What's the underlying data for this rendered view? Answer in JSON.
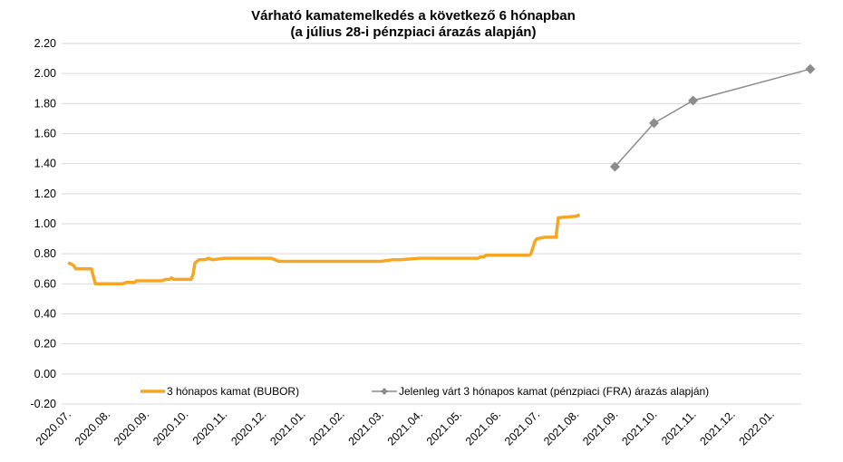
{
  "chart_data": {
    "type": "line",
    "title": "Várható kamatemelkedés a következő 6 hónapban",
    "subtitle": "(a július 28-i pénzpiaci árazás alapján)",
    "xlabel": "",
    "ylabel": "",
    "ylim": [
      -0.2,
      2.2
    ],
    "yticks": [
      "2.20",
      "2.00",
      "1.80",
      "1.60",
      "1.40",
      "1.20",
      "1.00",
      "0.80",
      "0.60",
      "0.40",
      "0.20",
      "0.00",
      "-0.20"
    ],
    "ytick_values": [
      2.2,
      2.0,
      1.8,
      1.6,
      1.4,
      1.2,
      1.0,
      0.8,
      0.6,
      0.4,
      0.2,
      0.0,
      -0.2
    ],
    "categories": [
      "2020.07.",
      "2020.08.",
      "2020.09.",
      "2020.10.",
      "2020.11.",
      "2020.12.",
      "2021.01.",
      "2021.02.",
      "2021.03.",
      "2021.04.",
      "2021.05.",
      "2021.06.",
      "2021.07.",
      "2021.08.",
      "2021.09.",
      "2021.10.",
      "2021.11.",
      "2021.12.",
      "2022.01."
    ],
    "grid": true,
    "legend_position": "bottom",
    "series": [
      {
        "name": "3 hónapos kamat (BUBOR)",
        "color": "#F5A623",
        "style": "line",
        "x": [
          0.0,
          0.1,
          0.15,
          0.2,
          0.3,
          0.4,
          0.6,
          0.62,
          0.65,
          0.68,
          0.7,
          0.75,
          0.8,
          0.9,
          0.95,
          1.0,
          1.2,
          1.4,
          1.5,
          1.6,
          1.7,
          1.75,
          1.8,
          1.85,
          1.9,
          1.95,
          2.0,
          2.05,
          2.2,
          2.4,
          2.5,
          2.6,
          2.65,
          2.7,
          2.8,
          3.0,
          3.15,
          3.2,
          3.25,
          3.3,
          3.35,
          3.5,
          3.6,
          3.7,
          4.0,
          5.0,
          5.2,
          5.3,
          5.4,
          6.0,
          6.5,
          7.0,
          7.2,
          7.3,
          7.5,
          8.0,
          8.3,
          8.5,
          9.0,
          9.2,
          9.4,
          9.5,
          10.0,
          10.5,
          10.55,
          10.6,
          10.65,
          10.7,
          10.75,
          10.8,
          10.85,
          10.9,
          11.0,
          11.2,
          11.4,
          11.6,
          11.8,
          11.85,
          11.9,
          11.95,
          12.0,
          12.2,
          12.3,
          12.45,
          12.5
        ],
        "values": [
          0.74,
          0.73,
          0.72,
          0.7,
          0.7,
          0.7,
          0.7,
          0.68,
          0.65,
          0.62,
          0.6,
          0.6,
          0.6,
          0.6,
          0.6,
          0.6,
          0.6,
          0.6,
          0.61,
          0.61,
          0.61,
          0.62,
          0.62,
          0.62,
          0.62,
          0.62,
          0.62,
          0.62,
          0.62,
          0.62,
          0.63,
          0.63,
          0.64,
          0.63,
          0.63,
          0.63,
          0.63,
          0.66,
          0.74,
          0.75,
          0.76,
          0.76,
          0.77,
          0.76,
          0.77,
          0.77,
          0.77,
          0.76,
          0.75,
          0.75,
          0.75,
          0.75,
          0.75,
          0.75,
          0.75,
          0.75,
          0.76,
          0.76,
          0.77,
          0.77,
          0.77,
          0.77,
          0.77,
          0.77,
          0.78,
          0.78,
          0.78,
          0.79,
          0.79,
          0.79,
          0.79,
          0.79,
          0.79,
          0.79,
          0.79,
          0.79,
          0.79,
          0.8,
          0.84,
          0.88,
          0.9,
          0.91,
          0.91,
          0.91,
          0.91
        ]
      },
      {
        "name": "Jelenleg várt 3 hónapos kamat (pénzpiaci (FRA) árazás alapján)",
        "color": "#8C8C8C",
        "style": "line-diamond",
        "x": [
          14.0,
          15.0,
          16.0,
          19.0
        ],
        "values": [
          1.38,
          1.67,
          1.82,
          2.03
        ]
      }
    ]
  }
}
